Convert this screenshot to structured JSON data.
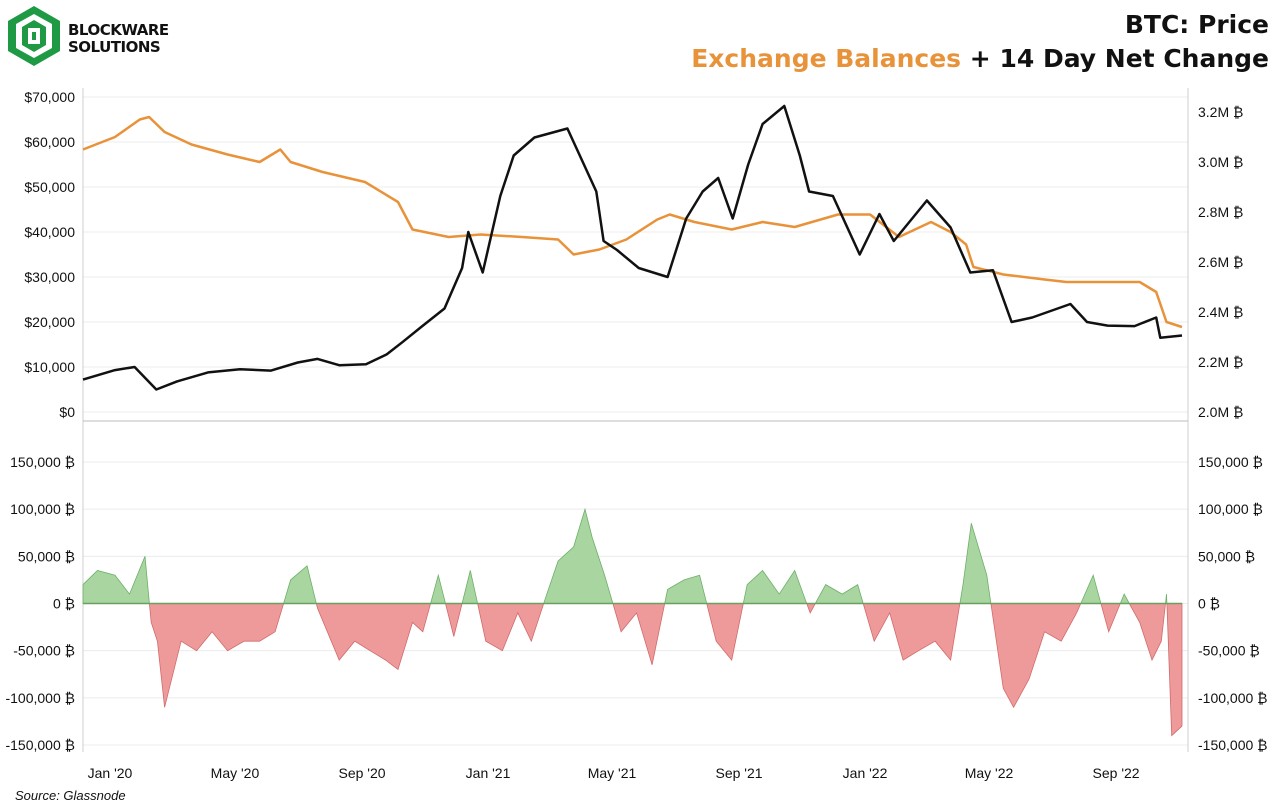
{
  "logo": {
    "line1": "BLOCKWARE",
    "line2": "SOLUTIONS"
  },
  "title": {
    "main": "BTC: Price",
    "sub_orange": "Exchange Balances",
    "sub_black": "+ 14 Day Net Change"
  },
  "source": "Source: Glassnode",
  "colors": {
    "price": "#111111",
    "balance": "#E8923A",
    "positive": "#A8D5A0",
    "positive_stroke": "#6DB069",
    "negative": "#EE9A9A",
    "negative_stroke": "#D26A6A"
  },
  "chart_data": [
    {
      "type": "line",
      "series": [
        {
          "axis": "left",
          "x": [
            "2020-01-01",
            "2020-02-01",
            "2020-02-20",
            "2020-03-12",
            "2020-04-01",
            "2020-05-01",
            "2020-06-01",
            "2020-07-01",
            "2020-07-27",
            "2020-08-15",
            "2020-09-05",
            "2020-10-01",
            "2020-10-21",
            "2020-11-05",
            "2020-11-24",
            "2020-12-16",
            "2021-01-02",
            "2021-01-08",
            "2021-01-22",
            "2021-02-08",
            "2021-02-21",
            "2021-03-13",
            "2021-04-14",
            "2021-05-12",
            "2021-05-19",
            "2021-06-01",
            "2021-06-22",
            "2021-07-20",
            "2021-08-07",
            "2021-08-23",
            "2021-09-07",
            "2021-09-21",
            "2021-10-06",
            "2021-10-20",
            "2021-11-10",
            "2021-11-25",
            "2021-12-04",
            "2021-12-27",
            "2022-01-22",
            "2022-02-10",
            "2022-02-24",
            "2022-03-28",
            "2022-04-20",
            "2022-05-09",
            "2022-05-31",
            "2022-06-18",
            "2022-07-08",
            "2022-08-14",
            "2022-08-30",
            "2022-09-19",
            "2022-10-15",
            "2022-11-05",
            "2022-11-09",
            "2022-11-30"
          ],
          "values": [
            7200,
            9300,
            10000,
            5000,
            6800,
            8800,
            9500,
            9200,
            11000,
            11800,
            10400,
            10600,
            12800,
            15500,
            19000,
            23000,
            32000,
            40000,
            31000,
            48000,
            57000,
            61000,
            63000,
            49000,
            38000,
            36000,
            32000,
            30000,
            43000,
            49000,
            52000,
            43000,
            55000,
            64000,
            68000,
            57000,
            49000,
            48000,
            35000,
            44000,
            38000,
            47000,
            41000,
            31000,
            31500,
            20000,
            21000,
            24000,
            20000,
            19200,
            19100,
            21000,
            16500,
            17000
          ]
        },
        {
          "axis": "right",
          "x": [
            "2020-01-01",
            "2020-02-01",
            "2020-02-25",
            "2020-03-05",
            "2020-03-20",
            "2020-04-15",
            "2020-05-20",
            "2020-06-20",
            "2020-07-10",
            "2020-07-20",
            "2020-08-20",
            "2020-09-30",
            "2020-11-01",
            "2020-11-15",
            "2020-12-20",
            "2021-01-20",
            "2021-03-01",
            "2021-04-05",
            "2021-04-20",
            "2021-05-15",
            "2021-06-10",
            "2021-07-10",
            "2021-07-22",
            "2021-08-15",
            "2021-09-20",
            "2021-10-20",
            "2021-11-20",
            "2022-01-01",
            "2022-02-01",
            "2022-03-01",
            "2022-04-01",
            "2022-04-20",
            "2022-05-05",
            "2022-05-12",
            "2022-06-10",
            "2022-07-20",
            "2022-08-10",
            "2022-09-15",
            "2022-10-20",
            "2022-11-05",
            "2022-11-15",
            "2022-11-30"
          ],
          "values": [
            3.05,
            3.1,
            3.17,
            3.18,
            3.12,
            3.07,
            3.03,
            3.0,
            3.05,
            3.0,
            2.96,
            2.92,
            2.84,
            2.73,
            2.7,
            2.71,
            2.7,
            2.69,
            2.63,
            2.65,
            2.69,
            2.77,
            2.79,
            2.76,
            2.73,
            2.76,
            2.74,
            2.79,
            2.79,
            2.7,
            2.76,
            2.72,
            2.67,
            2.58,
            2.55,
            2.53,
            2.52,
            2.52,
            2.52,
            2.48,
            2.36,
            2.34
          ]
        }
      ],
      "y_left": {
        "ylim": [
          0,
          70000
        ],
        "ticks": [
          "$70,000",
          "$60,000",
          "$50,000",
          "$40,000",
          "$30,000",
          "$20,000",
          "$10,000",
          "$0"
        ]
      },
      "y_right": {
        "ylim": [
          2.0,
          3.2
        ],
        "ticks": [
          "3.2M ₿",
          "3.0M ₿",
          "2.8M ₿",
          "2.6M ₿",
          "2.4M ₿",
          "2.2M ₿",
          "2.0M ₿"
        ]
      },
      "grid": true
    },
    {
      "type": "area",
      "x": [
        "2020-01-01",
        "2020-01-15",
        "2020-02-01",
        "2020-02-15",
        "2020-03-01",
        "2020-03-07",
        "2020-03-13",
        "2020-03-20",
        "2020-04-05",
        "2020-04-20",
        "2020-05-05",
        "2020-05-20",
        "2020-06-05",
        "2020-06-20",
        "2020-07-05",
        "2020-07-20",
        "2020-08-05",
        "2020-08-15",
        "2020-09-05",
        "2020-09-20",
        "2020-10-05",
        "2020-10-20",
        "2020-11-01",
        "2020-11-15",
        "2020-11-25",
        "2020-12-10",
        "2020-12-25",
        "2021-01-10",
        "2021-01-25",
        "2021-02-10",
        "2021-02-25",
        "2021-03-10",
        "2021-03-25",
        "2021-04-05",
        "2021-04-20",
        "2021-05-01",
        "2021-05-08",
        "2021-05-20",
        "2021-06-05",
        "2021-06-20",
        "2021-07-05",
        "2021-07-20",
        "2021-08-05",
        "2021-08-20",
        "2021-09-05",
        "2021-09-20",
        "2021-10-05",
        "2021-10-20",
        "2021-11-05",
        "2021-11-20",
        "2021-12-05",
        "2021-12-20",
        "2022-01-05",
        "2022-01-20",
        "2022-02-05",
        "2022-02-20",
        "2022-03-05",
        "2022-03-20",
        "2022-04-05",
        "2022-04-20",
        "2022-05-02",
        "2022-05-10",
        "2022-05-25",
        "2022-06-10",
        "2022-06-20",
        "2022-07-05",
        "2022-07-20",
        "2022-08-05",
        "2022-08-20",
        "2022-09-05",
        "2022-09-20",
        "2022-10-05",
        "2022-10-20",
        "2022-11-01",
        "2022-11-10",
        "2022-11-15",
        "2022-11-20",
        "2022-11-30"
      ],
      "values": [
        20000,
        35000,
        30000,
        10000,
        50000,
        -20000,
        -40000,
        -110000,
        -40000,
        -50000,
        -30000,
        -50000,
        -40000,
        -40000,
        -30000,
        25000,
        40000,
        -5000,
        -60000,
        -40000,
        -50000,
        -60000,
        -70000,
        -20000,
        -30000,
        30000,
        -35000,
        35000,
        -40000,
        -50000,
        -10000,
        -40000,
        10000,
        45000,
        60000,
        100000,
        70000,
        30000,
        -30000,
        -10000,
        -65000,
        15000,
        25000,
        30000,
        -40000,
        -60000,
        20000,
        35000,
        10000,
        35000,
        -10000,
        20000,
        10000,
        20000,
        -40000,
        -10000,
        -60000,
        -50000,
        -40000,
        -60000,
        20000,
        85000,
        30000,
        -90000,
        -110000,
        -80000,
        -30000,
        -40000,
        -10000,
        30000,
        -30000,
        10000,
        -20000,
        -60000,
        -40000,
        10000,
        -140000,
        -130000
      ],
      "y": {
        "ylim": [
          -150000,
          150000
        ],
        "ticks": [
          "150,000 ₿",
          "100,000 ₿",
          "50,000 ₿",
          "0 ₿",
          "-50,000 ₿",
          "-100,000 ₿",
          "-150,000 ₿"
        ]
      },
      "grid": true
    }
  ],
  "x_ticks": [
    {
      "label": "Jan '20",
      "date": "2020-01-01"
    },
    {
      "label": "May '20",
      "date": "2020-05-01"
    },
    {
      "label": "Sep '20",
      "date": "2020-09-01"
    },
    {
      "label": "Jan '21",
      "date": "2021-01-01"
    },
    {
      "label": "May '21",
      "date": "2021-05-01"
    },
    {
      "label": "Sep '21",
      "date": "2021-09-01"
    },
    {
      "label": "Jan '22",
      "date": "2022-01-01"
    },
    {
      "label": "May '22",
      "date": "2022-05-01"
    },
    {
      "label": "Sep '22",
      "date": "2022-09-01"
    }
  ]
}
